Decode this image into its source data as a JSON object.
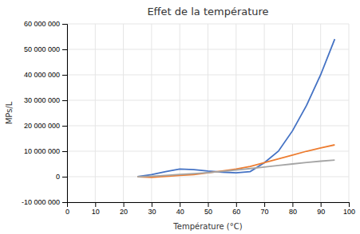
{
  "chart_data": {
    "type": "line",
    "title": "Effet de la température",
    "xlabel": "Température (°C)",
    "ylabel": "MPs/L",
    "x": [
      25,
      30,
      35,
      40,
      45,
      50,
      55,
      60,
      65,
      70,
      75,
      80,
      85,
      90,
      95
    ],
    "series": [
      {
        "color": "#4472c4",
        "values": [
          0,
          800000,
          2000000,
          3000000,
          2800000,
          2200000,
          1800000,
          1500000,
          2000000,
          5500000,
          10000000,
          18000000,
          28000000,
          40000000,
          54000000
        ]
      },
      {
        "color": "#ed7d31",
        "values": [
          0,
          -300000,
          100000,
          500000,
          800000,
          1500000,
          2200000,
          3000000,
          4000000,
          5500000,
          7000000,
          8500000,
          10000000,
          11300000,
          12500000
        ]
      },
      {
        "color": "#a5a5a5",
        "values": [
          0,
          200000,
          500000,
          900000,
          1200000,
          1600000,
          2100000,
          2600000,
          3200000,
          3800000,
          4400000,
          5000000,
          5600000,
          6100000,
          6500000
        ]
      }
    ],
    "xlim": [
      0,
      100
    ],
    "ylim": [
      -10000000,
      60000000
    ],
    "xticks": [
      0,
      10,
      20,
      30,
      40,
      50,
      60,
      70,
      80,
      90,
      100
    ],
    "yticks": [
      {
        "value": -10000000,
        "label": "-10 000 000"
      },
      0,
      {
        "value": 10000000,
        "label": "10 000 000"
      },
      {
        "value": 20000000,
        "label": "20 000 000"
      },
      {
        "value": 30000000,
        "label": "30 000 000"
      },
      {
        "value": 40000000,
        "label": "40 000 000"
      },
      {
        "value": 50000000,
        "label": "50 000 000"
      },
      {
        "value": 60000000,
        "label": "60 000 000"
      }
    ],
    "grid": true
  }
}
